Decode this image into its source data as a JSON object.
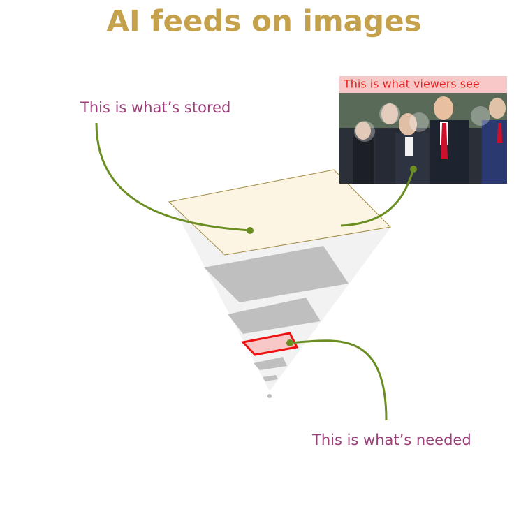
{
  "title": "AI feeds on images",
  "annotations": {
    "stored": "This is what’s stored",
    "viewers": "This is what viewers see",
    "needed": "This is what’s needed"
  }
}
